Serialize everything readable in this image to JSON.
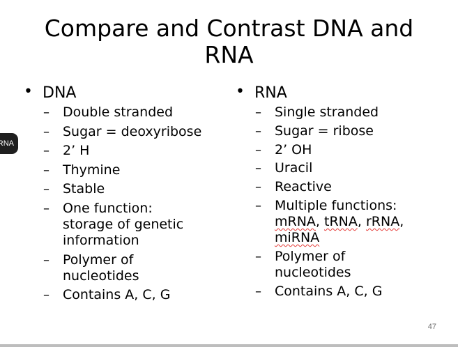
{
  "slide": {
    "title": "Compare and Contrast DNA and RNA",
    "page_number": "47",
    "edge_badge": "RNA",
    "left": {
      "heading": "DNA",
      "items": [
        "Double stranded",
        "Sugar = deoxyribose",
        "2’ H",
        "Thymine",
        "Stable",
        "One function: storage of genetic information",
        "Polymer of nucleotides",
        "Contains A, C, G"
      ]
    },
    "right": {
      "heading": "RNA",
      "items": [
        "Single stranded",
        "Sugar = ribose",
        "2’ OH",
        "Uracil",
        "Reactive",
        "Multiple functions:",
        "Polymer of nucleotides",
        "Contains A, C, G"
      ],
      "function_terms": [
        "mRNA",
        "tRNA",
        "rRNA",
        "miRNA"
      ]
    }
  }
}
